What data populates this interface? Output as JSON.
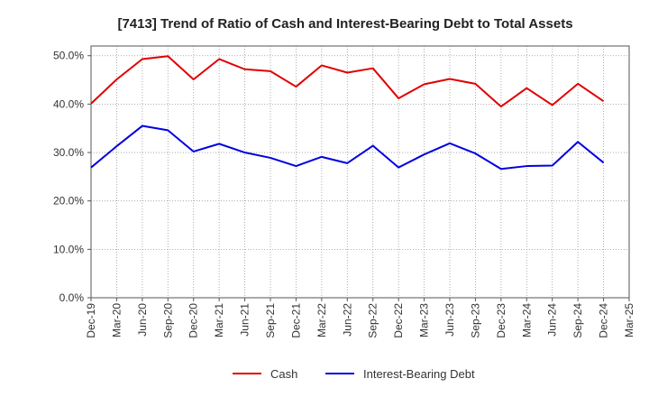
{
  "chart_data": {
    "type": "line",
    "title": "[7413]  Trend of Ratio of Cash and Interest-Bearing Debt to Total Assets",
    "xlabel": "",
    "ylabel": "",
    "ylim": [
      0,
      52
    ],
    "yticks": [
      0,
      10,
      20,
      30,
      40,
      50
    ],
    "ytick_labels": [
      "0.0%",
      "10.0%",
      "20.0%",
      "30.0%",
      "40.0%",
      "50.0%"
    ],
    "categories": [
      "Dec-19",
      "Mar-20",
      "Jun-20",
      "Sep-20",
      "Dec-20",
      "Mar-21",
      "Jun-21",
      "Sep-21",
      "Dec-21",
      "Mar-22",
      "Jun-22",
      "Sep-22",
      "Dec-22",
      "Mar-23",
      "Jun-23",
      "Sep-23",
      "Dec-23",
      "Mar-24",
      "Jun-24",
      "Sep-24",
      "Dec-24",
      "Mar-25"
    ],
    "series": [
      {
        "name": "Cash",
        "color": "#e00000",
        "values": [
          40.1,
          45.1,
          49.3,
          49.9,
          45.1,
          49.3,
          47.2,
          46.8,
          43.6,
          48.0,
          46.5,
          47.4,
          41.2,
          44.1,
          45.2,
          44.2,
          39.5,
          43.3,
          39.8,
          44.2,
          40.6,
          null
        ]
      },
      {
        "name": "Interest-Bearing Debt",
        "color": "#0000e0",
        "values": [
          26.9,
          31.3,
          35.5,
          34.6,
          30.2,
          31.8,
          30.0,
          28.9,
          27.2,
          29.1,
          27.8,
          31.4,
          26.9,
          29.6,
          31.9,
          29.8,
          26.6,
          27.2,
          27.3,
          32.2,
          27.9,
          null
        ]
      }
    ],
    "grid": true,
    "legend_position": "bottom"
  }
}
